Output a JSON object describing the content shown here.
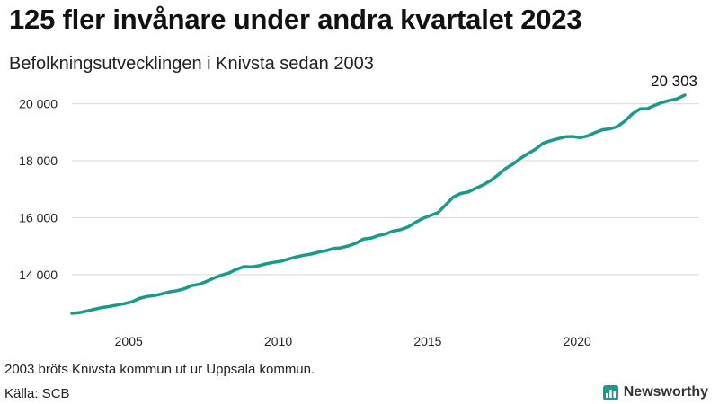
{
  "header": {
    "title": "125 fler invånare under andra kvartalet 2023",
    "subtitle": "Befolkningsutvecklingen i Knivsta sedan 2003"
  },
  "footer": {
    "note": "2003 bröts Knivsta kommun ut ur Uppsala kommun.",
    "source": "Källa: SCB",
    "brand": "Newsworthy",
    "brand_icon": "bar-chart-logo-icon",
    "brand_color": "#1a9a8a"
  },
  "chart_data": {
    "type": "line",
    "title": "125 fler invånare under andra kvartalet 2023",
    "subtitle": "Befolkningsutvecklingen i Knivsta sedan 2003",
    "xlabel": "",
    "ylabel": "",
    "x_ticks": [
      "2005",
      "2010",
      "2015",
      "2020"
    ],
    "y_ticks": [
      "14 000",
      "16 000",
      "18 000",
      "20 000"
    ],
    "xlim": [
      2003.1,
      2023.6
    ],
    "ylim": [
      12450,
      20650
    ],
    "grid": "horizontal",
    "color": "#1a9a8a",
    "end_label": "20 303",
    "series": [
      {
        "x": [
          2003.1,
          2003.35,
          2003.6,
          2003.85,
          2004.1,
          2004.35,
          2004.6,
          2004.85,
          2005.1,
          2005.35,
          2005.6,
          2005.85,
          2006.1,
          2006.35,
          2006.6,
          2006.85,
          2007.1,
          2007.35,
          2007.6,
          2007.85,
          2008.1,
          2008.35,
          2008.6,
          2008.85,
          2009.1,
          2009.35,
          2009.6,
          2009.85,
          2010.1,
          2010.35,
          2010.6,
          2010.85,
          2011.1,
          2011.35,
          2011.6,
          2011.85,
          2012.1,
          2012.35,
          2012.6,
          2012.85,
          2013.1,
          2013.35,
          2013.6,
          2013.85,
          2014.1,
          2014.35,
          2014.6,
          2014.85,
          2015.1,
          2015.35,
          2015.6,
          2015.85,
          2016.1,
          2016.35,
          2016.6,
          2016.85,
          2017.1,
          2017.35,
          2017.6,
          2017.85,
          2018.1,
          2018.35,
          2018.6,
          2018.85,
          2019.1,
          2019.35,
          2019.6,
          2019.85,
          2020.1,
          2020.35,
          2020.6,
          2020.85,
          2021.1,
          2021.35,
          2021.6,
          2021.85,
          2022.1,
          2022.35,
          2022.6,
          2022.85,
          2023.1,
          2023.35,
          2023.6
        ],
        "values": [
          12640,
          12660,
          12720,
          12780,
          12840,
          12880,
          12930,
          12980,
          13040,
          13160,
          13230,
          13260,
          13320,
          13390,
          13430,
          13500,
          13610,
          13660,
          13760,
          13880,
          13980,
          14060,
          14180,
          14280,
          14270,
          14310,
          14380,
          14430,
          14470,
          14550,
          14620,
          14680,
          14720,
          14790,
          14840,
          14920,
          14940,
          15010,
          15100,
          15250,
          15280,
          15370,
          15430,
          15530,
          15580,
          15680,
          15840,
          15980,
          16080,
          16180,
          16450,
          16720,
          16850,
          16900,
          17030,
          17150,
          17300,
          17500,
          17720,
          17880,
          18080,
          18250,
          18400,
          18610,
          18700,
          18770,
          18840,
          18850,
          18810,
          18870,
          18990,
          19090,
          19120,
          19200,
          19400,
          19650,
          19820,
          19830,
          19950,
          20050,
          20120,
          20180,
          20303
        ]
      }
    ]
  }
}
